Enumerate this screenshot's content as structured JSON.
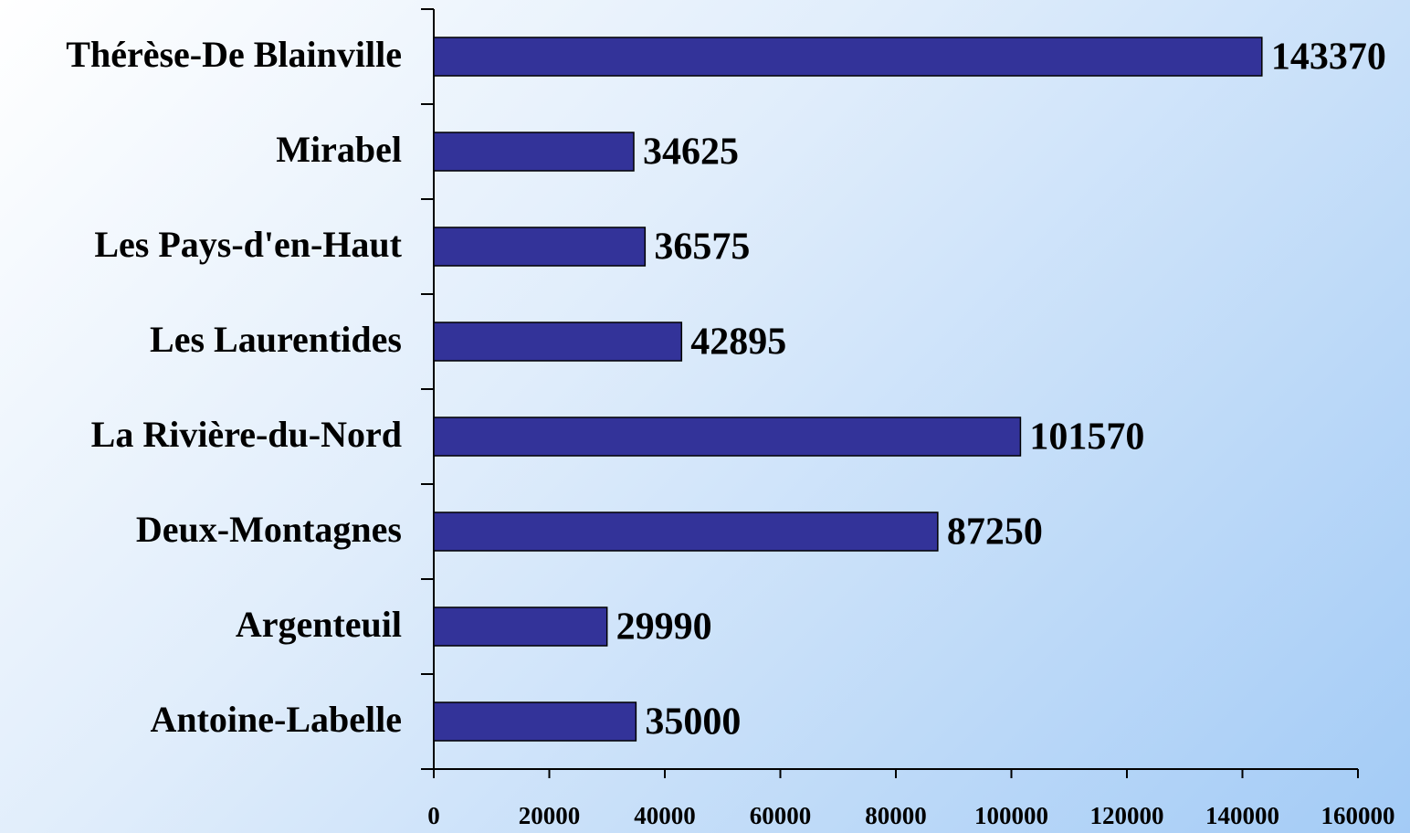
{
  "chart_data": {
    "type": "bar",
    "orientation": "horizontal",
    "categories": [
      "Thérèse-De Blainville",
      "Mirabel",
      "Les Pays-d'en-Haut",
      "Les Laurentides",
      "La Rivière-du-Nord",
      "Deux-Montagnes",
      "Argenteuil",
      "Antoine-Labelle"
    ],
    "values": [
      143370,
      34625,
      36575,
      42895,
      101570,
      87250,
      29990,
      35000
    ],
    "color": "#333399",
    "xlim": [
      0,
      160000
    ],
    "xticks": [
      0,
      20000,
      40000,
      60000,
      80000,
      100000,
      120000,
      140000,
      160000
    ],
    "grid": false
  }
}
